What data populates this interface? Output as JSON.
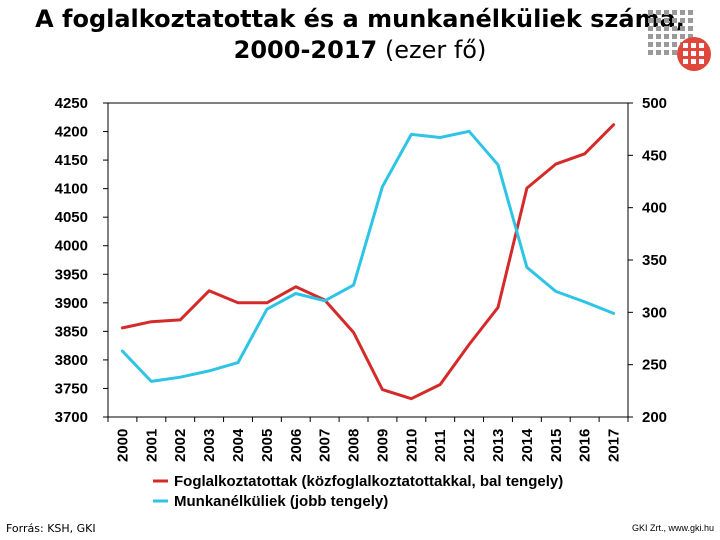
{
  "slide": {
    "title_line1": "A foglalkoztatottak és a munkanélküliek száma,",
    "title_line2_bold": "2000-2017",
    "title_line2_rest": " (ezer fő)",
    "source": "Forrás: KSH, GKI",
    "credit": "GKI Zrt., www.gki.hu"
  },
  "colors": {
    "employed": "#d42a2a",
    "unemployed": "#2ec4e6",
    "logo_red": "#e0463c",
    "logo_gray": "#9a9a9a"
  },
  "chart_data": {
    "type": "line",
    "categories": [
      "2000",
      "2001",
      "2002",
      "2003",
      "2004",
      "2005",
      "2006",
      "2007",
      "2008",
      "2009",
      "2010",
      "2011",
      "2012",
      "2013",
      "2014",
      "2015",
      "2016",
      "2017"
    ],
    "series": [
      {
        "name": "Foglalkoztatottak (közfoglalkoztatottakkal, bal tengely)",
        "axis": "left",
        "color": "#d42a2a",
        "values": [
          3856,
          3867,
          3870,
          3921,
          3900,
          3900,
          3928,
          3905,
          3848,
          3748,
          3732,
          3757,
          3827,
          3892,
          4101,
          4143,
          4161,
          4212
        ]
      },
      {
        "name": "Munkanélküliek (jobb tengely)",
        "axis": "right",
        "color": "#2ec4e6",
        "values": [
          263,
          234,
          238,
          244,
          252,
          303,
          318,
          311,
          326,
          420,
          470,
          467,
          473,
          441,
          343,
          320,
          310,
          299
        ]
      }
    ],
    "y_left": {
      "ylim": [
        3700,
        4250
      ],
      "ticks": [
        "3700",
        "3750",
        "3800",
        "3850",
        "3900",
        "3950",
        "4000",
        "4050",
        "4100",
        "4150",
        "4200",
        "4250"
      ]
    },
    "y_right": {
      "ylim": [
        200,
        500
      ],
      "ticks": [
        "200",
        "250",
        "300",
        "350",
        "400",
        "450",
        "500"
      ]
    },
    "grid": false,
    "legend_position": "bottom"
  }
}
